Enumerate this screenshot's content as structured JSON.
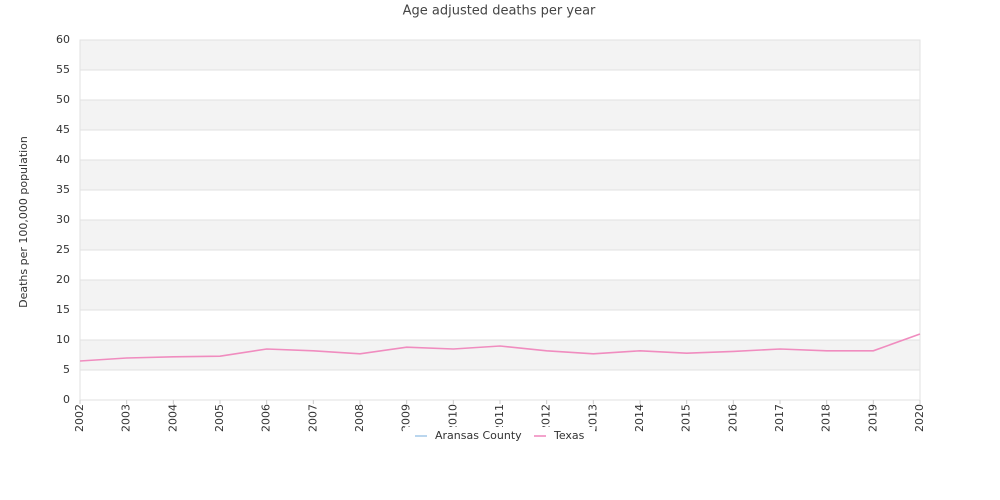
{
  "chart_data": {
    "type": "line",
    "title": "Age adjusted deaths per year",
    "y_label": "Deaths per 100,000 population",
    "x": [
      2002,
      2003,
      2004,
      2005,
      2006,
      2007,
      2008,
      2009,
      2010,
      2011,
      2012,
      2013,
      2014,
      2015,
      2016,
      2017,
      2018,
      2019,
      2020
    ],
    "xlim": [
      2002,
      2020
    ],
    "xticks": [
      2002,
      2003,
      2004,
      2005,
      2006,
      2007,
      2008,
      2009,
      2010,
      2011,
      2012,
      2013,
      2014,
      2015,
      2016,
      2017,
      2018,
      2019,
      2020
    ],
    "ylim": [
      0,
      60
    ],
    "yticks": [
      0,
      5,
      10,
      15,
      20,
      25,
      30,
      35,
      40,
      45,
      50,
      55,
      60
    ],
    "grid": true,
    "legend": "bottom",
    "series": [
      {
        "name": "Aransas County",
        "color": "#a9cbe9",
        "values": [
          null,
          null,
          null,
          null,
          null,
          null,
          null,
          null,
          null,
          null,
          null,
          null,
          null,
          null,
          null,
          null,
          null,
          null,
          null
        ]
      },
      {
        "name": "Texas",
        "color": "#f08cbf",
        "values": [
          6.5,
          7.0,
          7.2,
          7.3,
          8.5,
          8.2,
          7.7,
          8.8,
          8.5,
          9.0,
          8.2,
          7.7,
          8.2,
          7.8,
          8.1,
          8.5,
          8.2,
          8.2,
          11.0
        ]
      }
    ]
  }
}
